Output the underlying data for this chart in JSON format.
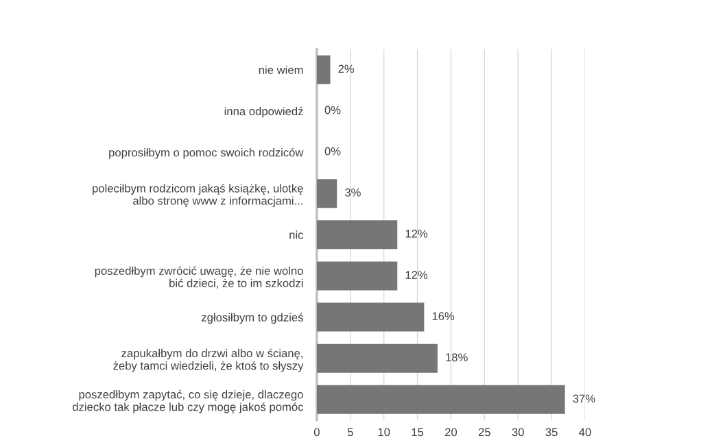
{
  "chart_data": {
    "type": "bar",
    "orientation": "horizontal",
    "categories": [
      "nie wiem",
      "inna odpowiedź",
      "poprosiłbym o pomoc swoich rodziców",
      "poleciłbym rodzicom jakąś książkę, ulotkę\nalbo stronę www z informacjami...",
      "nic",
      "poszedłbym zwrócić uwagę, że nie wolno\nbić dzieci, że to im szkodzi",
      "zgłosiłbym to gdzieś",
      "zapukałbym do drzwi albo w ścianę,\nżeby tamci wiedzieli, że ktoś to słyszy",
      "poszedłbym zapytać, co się dzieje, dlaczego\ndziecko tak płacze lub czy mogę jakoś pomóc"
    ],
    "values": [
      2,
      0,
      0,
      3,
      12,
      12,
      16,
      18,
      37
    ],
    "value_labels": [
      "2%",
      "0%",
      "0%",
      "3%",
      "12%",
      "12%",
      "16%",
      "18%",
      "37%"
    ],
    "color": "#767676",
    "xlim": [
      0,
      40
    ],
    "xticks": [
      0,
      5,
      10,
      15,
      20,
      25,
      30,
      35,
      40
    ],
    "grid": "x",
    "legend": false
  }
}
